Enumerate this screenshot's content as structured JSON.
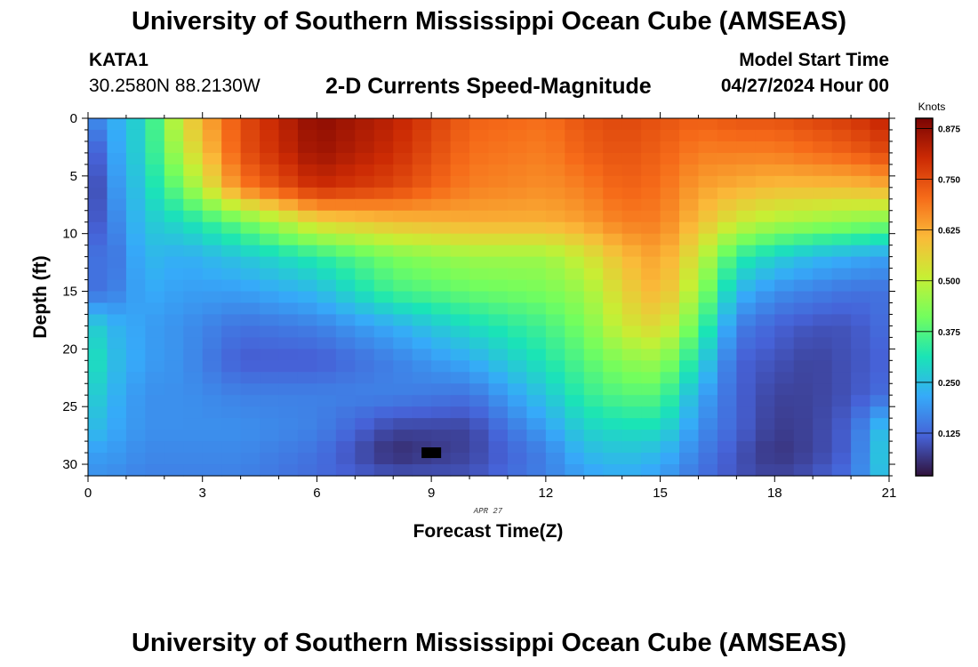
{
  "header": {
    "title": "University of Southern Mississippi Ocean Cube (AMSEAS)",
    "station_id": "KATA1",
    "coordinates": "30.2580N  88.2130W",
    "subtitle": "2-D Currents Speed-Magnitude",
    "model_start_label": "Model Start Time",
    "model_start_value": "04/27/2024 Hour 00"
  },
  "footer": {
    "title": "University of Southern Mississippi Ocean Cube (AMSEAS)"
  },
  "chart_data": {
    "type": "heatmap",
    "title": "2-D Currents Speed-Magnitude",
    "xlabel": "Forecast Time(Z)",
    "ylabel": "Depth (ft)",
    "date_label": "APR 27",
    "xlim": [
      0,
      21
    ],
    "ylim": [
      31,
      0
    ],
    "x_ticks": [
      0,
      3,
      6,
      9,
      12,
      15,
      18,
      21
    ],
    "y_ticks": [
      0,
      5,
      10,
      15,
      20,
      25,
      30
    ],
    "colorbar": {
      "label": "Knots",
      "min": 0.02,
      "max": 0.9,
      "ticks": [
        "0.125",
        "0.250",
        "0.375",
        "0.500",
        "0.625",
        "0.750",
        "0.875"
      ]
    },
    "colormap": [
      "#30123b",
      "#4662d7",
      "#36aaf9",
      "#1ae4b6",
      "#72fe5e",
      "#c7ef34",
      "#faba39",
      "#f66b19",
      "#cb2a04",
      "#7a0403"
    ],
    "control_points": {
      "times": [
        0,
        0.5,
        1.5,
        2.5,
        4,
        6,
        8,
        10,
        12,
        13,
        14,
        15,
        16,
        17,
        18,
        19,
        20,
        21
      ],
      "depths": [
        0,
        3,
        6,
        9,
        12,
        15,
        18,
        21,
        24,
        27,
        29,
        31
      ],
      "speeds_knots": [
        [
          0.15,
          0.2,
          0.3,
          0.55,
          0.75,
          0.88,
          0.82,
          0.72,
          0.7,
          0.74,
          0.76,
          0.74,
          0.72,
          0.74,
          0.74,
          0.76,
          0.78,
          0.82
        ],
        [
          0.06,
          0.18,
          0.3,
          0.5,
          0.74,
          0.86,
          0.8,
          0.7,
          0.68,
          0.72,
          0.74,
          0.72,
          0.68,
          0.68,
          0.68,
          0.7,
          0.72,
          0.76
        ],
        [
          0.04,
          0.16,
          0.28,
          0.42,
          0.68,
          0.8,
          0.76,
          0.68,
          0.66,
          0.68,
          0.72,
          0.7,
          0.64,
          0.62,
          0.6,
          0.6,
          0.6,
          0.62
        ],
        [
          0.08,
          0.14,
          0.26,
          0.3,
          0.4,
          0.56,
          0.6,
          0.62,
          0.62,
          0.64,
          0.68,
          0.68,
          0.6,
          0.52,
          0.48,
          0.46,
          0.44,
          0.42
        ],
        [
          0.16,
          0.12,
          0.24,
          0.22,
          0.26,
          0.33,
          0.42,
          0.46,
          0.46,
          0.52,
          0.6,
          0.64,
          0.52,
          0.34,
          0.28,
          0.24,
          0.22,
          0.2
        ],
        [
          0.14,
          0.14,
          0.22,
          0.2,
          0.2,
          0.24,
          0.36,
          0.4,
          0.42,
          0.46,
          0.56,
          0.62,
          0.46,
          0.24,
          0.18,
          0.16,
          0.14,
          0.14
        ],
        [
          0.3,
          0.24,
          0.2,
          0.18,
          0.14,
          0.16,
          0.22,
          0.3,
          0.36,
          0.42,
          0.52,
          0.56,
          0.38,
          0.16,
          0.12,
          0.1,
          0.1,
          0.14
        ],
        [
          0.34,
          0.26,
          0.2,
          0.18,
          0.11,
          0.11,
          0.16,
          0.22,
          0.32,
          0.38,
          0.44,
          0.46,
          0.3,
          0.12,
          0.1,
          0.08,
          0.1,
          0.12
        ],
        [
          0.3,
          0.24,
          0.18,
          0.18,
          0.16,
          0.16,
          0.16,
          0.14,
          0.26,
          0.34,
          0.38,
          0.38,
          0.22,
          0.12,
          0.08,
          0.08,
          0.1,
          0.14
        ],
        [
          0.26,
          0.22,
          0.18,
          0.18,
          0.18,
          0.16,
          0.08,
          0.08,
          0.2,
          0.28,
          0.3,
          0.3,
          0.18,
          0.12,
          0.07,
          0.08,
          0.12,
          0.28
        ],
        [
          0.2,
          0.2,
          0.17,
          0.17,
          0.17,
          0.14,
          0.05,
          0.08,
          0.16,
          0.24,
          0.26,
          0.24,
          0.16,
          0.1,
          0.06,
          0.08,
          0.12,
          0.3
        ],
        [
          0.18,
          0.18,
          0.16,
          0.16,
          0.16,
          0.13,
          0.1,
          0.1,
          0.16,
          0.2,
          0.22,
          0.2,
          0.14,
          0.1,
          0.08,
          0.1,
          0.14,
          0.28
        ]
      ]
    },
    "annotations": [
      {
        "type": "marker",
        "time": 9,
        "depth": 29,
        "color": "#000000"
      }
    ]
  }
}
